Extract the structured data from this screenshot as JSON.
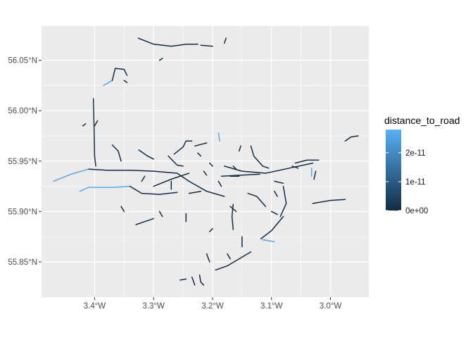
{
  "chart_data": {
    "type": "map",
    "title": "",
    "xlabel": "",
    "ylabel": "",
    "x_range_deg": [
      -3.49,
      -2.935
    ],
    "y_range_deg": [
      55.815,
      56.084
    ],
    "x_ticks": [
      {
        "value": -3.4,
        "label": "3.4°W"
      },
      {
        "value": -3.3,
        "label": "3.3°W"
      },
      {
        "value": -3.2,
        "label": "3.2°W"
      },
      {
        "value": -3.1,
        "label": "3.1°W"
      },
      {
        "value": -3.0,
        "label": "3.0°W"
      }
    ],
    "y_ticks": [
      {
        "value": 55.85,
        "label": "55.85°N"
      },
      {
        "value": 55.9,
        "label": "55.90°N"
      },
      {
        "value": 55.95,
        "label": "55.95°N"
      },
      {
        "value": 56.0,
        "label": "56.00°N"
      },
      {
        "value": 56.05,
        "label": "56.05°N"
      }
    ],
    "panel_background": "#ebebeb",
    "grid_color": "#ffffff",
    "legend": {
      "title": "distance_to_road",
      "placement": "right",
      "min": 0,
      "max": 2.8e-11,
      "low_color": "#132b43",
      "high_color": "#56b1f7",
      "ticks": [
        {
          "value": 0,
          "label": "0e+00"
        },
        {
          "value": 1e-11,
          "label": "1e-11"
        },
        {
          "value": 2e-11,
          "label": "2e-11"
        }
      ]
    },
    "series": [
      {
        "value": 2.6e-11,
        "points": [
          [
            -3.47,
            55.93
          ],
          [
            -3.44,
            55.937
          ],
          [
            -3.41,
            55.942
          ]
        ]
      },
      {
        "value": 0,
        "points": [
          [
            -3.41,
            55.942
          ],
          [
            -3.38,
            55.941
          ],
          [
            -3.34,
            55.941
          ],
          [
            -3.3,
            55.94
          ],
          [
            -3.26,
            55.938
          ]
        ]
      },
      {
        "value": 0,
        "points": [
          [
            -3.26,
            55.938
          ],
          [
            -3.24,
            55.93
          ],
          [
            -3.21,
            55.92
          ],
          [
            -3.18,
            55.915
          ]
        ]
      },
      {
        "value": 0,
        "points": [
          [
            -3.18,
            55.945
          ],
          [
            -3.15,
            55.94
          ],
          [
            -3.11,
            55.938
          ],
          [
            -3.07,
            55.943
          ],
          [
            -3.03,
            55.948
          ]
        ]
      },
      {
        "value": 0,
        "points": [
          [
            -3.185,
            55.935
          ],
          [
            -3.12,
            55.937
          ]
        ]
      },
      {
        "value": 2.6e-11,
        "points": [
          [
            -3.425,
            55.92
          ],
          [
            -3.41,
            55.924
          ],
          [
            -3.37,
            55.924
          ],
          [
            -3.34,
            55.925
          ]
        ]
      },
      {
        "value": 0,
        "points": [
          [
            -3.34,
            55.925
          ],
          [
            -3.32,
            55.918
          ],
          [
            -3.29,
            55.917
          ],
          [
            -3.26,
            55.919
          ]
        ]
      },
      {
        "value": 0,
        "points": [
          [
            -3.3,
            55.925
          ],
          [
            -3.27,
            55.932
          ],
          [
            -3.24,
            55.938
          ]
        ]
      },
      {
        "value": 0,
        "points": [
          [
            -3.402,
            56.012
          ],
          [
            -3.401,
            55.985
          ],
          [
            -3.4,
            55.955
          ],
          [
            -3.398,
            55.945
          ]
        ]
      },
      {
        "value": 0,
        "points": [
          [
            -3.326,
            56.072
          ],
          [
            -3.3,
            56.066
          ],
          [
            -3.27,
            56.064
          ],
          [
            -3.244,
            56.066
          ],
          [
            -3.225,
            56.066
          ]
        ]
      },
      {
        "value": 0,
        "points": [
          [
            -3.22,
            56.065
          ],
          [
            -3.2,
            56.064
          ]
        ]
      },
      {
        "value": 0,
        "points": [
          [
            -3.18,
            56.067
          ],
          [
            -3.177,
            56.072
          ]
        ]
      },
      {
        "value": 2.6e-11,
        "points": [
          [
            -3.385,
            56.025
          ],
          [
            -3.37,
            56.03
          ]
        ]
      },
      {
        "value": 0,
        "points": [
          [
            -3.37,
            56.03
          ],
          [
            -3.365,
            56.042
          ],
          [
            -3.35,
            56.041
          ],
          [
            -3.345,
            56.035
          ]
        ]
      },
      {
        "value": 0,
        "points": [
          [
            -3.325,
            55.961
          ],
          [
            -3.31,
            55.955
          ],
          [
            -3.3,
            55.952
          ]
        ]
      },
      {
        "value": 0,
        "points": [
          [
            -3.37,
            55.966
          ],
          [
            -3.36,
            55.96
          ],
          [
            -3.355,
            55.95
          ]
        ]
      },
      {
        "value": 0,
        "points": [
          [
            -3.265,
            55.957
          ],
          [
            -3.25,
            55.964
          ],
          [
            -3.245,
            55.97
          ],
          [
            -3.235,
            55.97
          ]
        ]
      },
      {
        "value": 0,
        "points": [
          [
            -3.275,
            55.955
          ],
          [
            -3.26,
            55.946
          ],
          [
            -3.25,
            55.945
          ]
        ]
      },
      {
        "value": 0,
        "points": [
          [
            -3.23,
            55.965
          ],
          [
            -3.21,
            55.968
          ]
        ]
      },
      {
        "value": 0,
        "points": [
          [
            -3.135,
            55.965
          ],
          [
            -3.13,
            55.955
          ],
          [
            -3.115,
            55.945
          ],
          [
            -3.105,
            55.943
          ]
        ]
      },
      {
        "value": 0,
        "points": [
          [
            -3.06,
            55.948
          ],
          [
            -3.04,
            55.951
          ],
          [
            -3.02,
            55.951
          ]
        ]
      },
      {
        "value": 0,
        "points": [
          [
            -3.065,
            55.945
          ],
          [
            -3.055,
            55.943
          ]
        ]
      },
      {
        "value": 0,
        "points": [
          [
            -3.025,
            55.94
          ],
          [
            -3.028,
            55.932
          ]
        ]
      },
      {
        "value": 2.6e-11,
        "points": [
          [
            -3.032,
            55.943
          ],
          [
            -3.032,
            55.935
          ]
        ]
      },
      {
        "value": 0,
        "points": [
          [
            -2.975,
            55.97
          ],
          [
            -2.965,
            55.974
          ],
          [
            -2.953,
            55.975
          ]
        ]
      },
      {
        "value": 0,
        "points": [
          [
            -3.03,
            55.908
          ],
          [
            -3.0,
            55.911
          ],
          [
            -2.975,
            55.912
          ]
        ]
      },
      {
        "value": 0,
        "points": [
          [
            -3.095,
            55.93
          ],
          [
            -3.08,
            55.928
          ]
        ]
      },
      {
        "value": 0,
        "points": [
          [
            -3.08,
            55.925
          ],
          [
            -3.075,
            55.908
          ],
          [
            -3.085,
            55.895
          ]
        ]
      },
      {
        "value": 0,
        "points": [
          [
            -3.08,
            55.895
          ],
          [
            -3.09,
            55.888
          ],
          [
            -3.1,
            55.881
          ],
          [
            -3.118,
            55.873
          ]
        ]
      },
      {
        "value": 0,
        "points": [
          [
            -3.14,
            55.918
          ],
          [
            -3.125,
            55.915
          ],
          [
            -3.11,
            55.905
          ]
        ]
      },
      {
        "value": 0,
        "points": [
          [
            -3.1,
            55.9
          ],
          [
            -3.09,
            55.897
          ]
        ]
      },
      {
        "value": 0,
        "points": [
          [
            -3.165,
            55.907
          ],
          [
            -3.167,
            55.895
          ],
          [
            -3.165,
            55.882
          ]
        ]
      },
      {
        "value": 0,
        "points": [
          [
            -3.15,
            55.875
          ],
          [
            -3.15,
            55.865
          ]
        ]
      },
      {
        "value": 2.6e-11,
        "points": [
          [
            -3.115,
            55.872
          ],
          [
            -3.095,
            55.87
          ]
        ]
      },
      {
        "value": 0,
        "points": [
          [
            -3.135,
            55.86
          ],
          [
            -3.155,
            55.853
          ],
          [
            -3.175,
            55.846
          ],
          [
            -3.195,
            55.842
          ]
        ]
      },
      {
        "value": 0,
        "points": [
          [
            -3.21,
            55.858
          ],
          [
            -3.205,
            55.85
          ]
        ]
      },
      {
        "value": 0,
        "points": [
          [
            -3.255,
            55.832
          ],
          [
            -3.245,
            55.833
          ]
        ]
      },
      {
        "value": 0,
        "points": [
          [
            -3.235,
            55.835
          ],
          [
            -3.23,
            55.827
          ]
        ]
      },
      {
        "value": 0,
        "points": [
          [
            -3.222,
            55.837
          ],
          [
            -3.22,
            55.83
          ],
          [
            -3.215,
            55.827
          ]
        ]
      },
      {
        "value": 0,
        "points": [
          [
            -3.33,
            55.887
          ],
          [
            -3.315,
            55.89
          ],
          [
            -3.3,
            55.893
          ]
        ]
      },
      {
        "value": 0,
        "points": [
          [
            -3.29,
            55.9
          ],
          [
            -3.285,
            55.895
          ]
        ]
      },
      {
        "value": 0,
        "points": [
          [
            -3.245,
            55.898
          ],
          [
            -3.245,
            55.89
          ]
        ]
      },
      {
        "value": 0,
        "points": [
          [
            -3.24,
            55.918
          ],
          [
            -3.22,
            55.92
          ]
        ]
      },
      {
        "value": 0,
        "points": [
          [
            -3.17,
            55.905
          ],
          [
            -3.16,
            55.9
          ]
        ]
      },
      {
        "value": 0,
        "points": [
          [
            -3.205,
            55.88
          ],
          [
            -3.2,
            55.883
          ]
        ]
      },
      {
        "value": 0,
        "points": [
          [
            -3.175,
            55.858
          ],
          [
            -3.17,
            55.853
          ]
        ]
      },
      {
        "value": 0,
        "points": [
          [
            -3.17,
            55.935
          ],
          [
            -3.155,
            55.935
          ]
        ]
      },
      {
        "value": 0,
        "points": [
          [
            -3.155,
            55.96
          ],
          [
            -3.152,
            55.965
          ]
        ]
      },
      {
        "value": 0,
        "points": [
          [
            -3.19,
            55.93
          ],
          [
            -3.185,
            55.925
          ]
        ]
      },
      {
        "value": 0,
        "points": [
          [
            -3.095,
            55.92
          ],
          [
            -3.09,
            55.915
          ]
        ]
      },
      {
        "value": 2.6e-11,
        "points": [
          [
            -3.19,
            55.978
          ],
          [
            -3.188,
            55.97
          ]
        ]
      },
      {
        "value": 0,
        "points": [
          [
            -3.27,
            55.93
          ],
          [
            -3.27,
            55.922
          ]
        ]
      },
      {
        "value": 0,
        "points": [
          [
            -3.355,
            55.905
          ],
          [
            -3.35,
            55.9
          ]
        ]
      },
      {
        "value": 0,
        "points": [
          [
            -3.32,
            55.93
          ],
          [
            -3.315,
            55.935
          ]
        ]
      },
      {
        "value": 0,
        "points": [
          [
            -3.4,
            55.985
          ],
          [
            -3.395,
            55.99
          ]
        ]
      },
      {
        "value": 0,
        "points": [
          [
            -3.35,
            56.03
          ],
          [
            -3.345,
            56.028
          ]
        ]
      },
      {
        "value": 0,
        "points": [
          [
            -3.29,
            56.05
          ],
          [
            -3.285,
            56.052
          ]
        ]
      },
      {
        "value": 0,
        "points": [
          [
            -3.42,
            55.985
          ],
          [
            -3.415,
            55.987
          ]
        ]
      },
      {
        "value": 0,
        "points": [
          [
            -3.225,
            55.958
          ],
          [
            -3.22,
            55.955
          ]
        ]
      },
      {
        "value": 0,
        "points": [
          [
            -3.205,
            55.948
          ],
          [
            -3.2,
            55.945
          ]
        ]
      },
      {
        "value": 0,
        "points": [
          [
            -3.215,
            55.94
          ],
          [
            -3.21,
            55.936
          ]
        ]
      },
      {
        "value": 0,
        "points": [
          [
            -3.165,
            55.945
          ],
          [
            -3.16,
            55.942
          ]
        ]
      }
    ]
  }
}
